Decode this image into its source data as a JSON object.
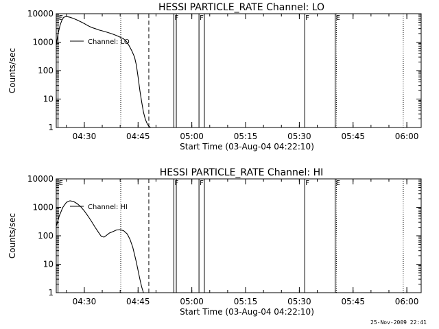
{
  "footer": {
    "timestamp": "25-Nov-2009 22:41"
  },
  "chart_data": [
    {
      "type": "line",
      "title": "HESSI PARTICLE_RATE Channel: LO",
      "xlabel": "Start Time (03-Aug-04 04:22:10)",
      "ylabel": "Counts/sec",
      "y_scale": "log",
      "ylim": [
        1,
        10000
      ],
      "xlim": [
        "04:22:10",
        "06:04:00"
      ],
      "y_ticks": [
        "1",
        "10",
        "100",
        "1000",
        "10000"
      ],
      "x_ticks": [
        "04:30",
        "04:45",
        "05:00",
        "05:15",
        "05:30",
        "05:45",
        "06:00"
      ],
      "legend": {
        "label": "Channel: LO",
        "placement": "top-left"
      },
      "series": [
        {
          "name": "Channel: LO",
          "x": [
            "04:22:10",
            "04:22:40",
            "04:23:15",
            "04:23:45",
            "04:24:15",
            "04:25:00",
            "04:26:00",
            "04:27:00",
            "04:28:00",
            "04:29:00",
            "04:30:00",
            "04:31:00",
            "04:32:00",
            "04:33:00",
            "04:34:00",
            "04:35:00",
            "04:36:00",
            "04:37:00",
            "04:38:00",
            "04:39:00",
            "04:40:00",
            "04:41:00",
            "04:41:45",
            "04:42:30",
            "04:43:15",
            "04:44:00",
            "04:44:30",
            "04:45:00",
            "04:45:30",
            "04:46:00",
            "04:46:30",
            "04:47:00",
            "04:47:30",
            "04:48:00",
            "04:48:30"
          ],
          "y": [
            800,
            2000,
            4000,
            6000,
            7500,
            8000,
            7500,
            6800,
            6000,
            5200,
            4500,
            3800,
            3300,
            3000,
            2700,
            2500,
            2300,
            2100,
            1900,
            1700,
            1500,
            1300,
            1050,
            750,
            500,
            300,
            160,
            60,
            20,
            8,
            3.5,
            2,
            1.4,
            1.1,
            1
          ]
        }
      ],
      "markers": [
        {
          "label": "E",
          "time": "04:22:40",
          "style": "solid"
        },
        {
          "label": "",
          "time": "04:40:10",
          "style": "dotted"
        },
        {
          "label": "",
          "time": "04:48:00",
          "style": "dashed"
        },
        {
          "label": "F",
          "time": "04:55:00",
          "style": "solid"
        },
        {
          "label": "",
          "time": "04:55:40",
          "style": "solid"
        },
        {
          "label": "F",
          "time": "05:02:00",
          "style": "solid"
        },
        {
          "label": "",
          "time": "05:03:30",
          "style": "solid"
        },
        {
          "label": "F",
          "time": "05:31:30",
          "style": "solid"
        },
        {
          "label": "E",
          "time": "05:40:00",
          "style": "solid"
        },
        {
          "label": "",
          "time": "05:40:20",
          "style": "dotted"
        },
        {
          "label": "",
          "time": "05:59:00",
          "style": "dotted"
        }
      ]
    },
    {
      "type": "line",
      "title": "HESSI PARTICLE_RATE Channel: HI",
      "xlabel": "Start Time (03-Aug-04 04:22:10)",
      "ylabel": "Counts/sec",
      "y_scale": "log",
      "ylim": [
        1,
        10000
      ],
      "xlim": [
        "04:22:10",
        "06:04:00"
      ],
      "y_ticks": [
        "1",
        "10",
        "100",
        "1000",
        "10000"
      ],
      "x_ticks": [
        "04:30",
        "04:45",
        "05:00",
        "05:15",
        "05:30",
        "05:45",
        "06:00"
      ],
      "legend": {
        "label": "Channel: HI",
        "placement": "top-left"
      },
      "series": [
        {
          "name": "Channel: HI",
          "x": [
            "04:22:10",
            "04:23:00",
            "04:24:00",
            "04:25:00",
            "04:26:00",
            "04:27:00",
            "04:28:00",
            "04:29:00",
            "04:30:00",
            "04:31:00",
            "04:32:00",
            "04:33:00",
            "04:34:00",
            "04:34:45",
            "04:35:30",
            "04:36:15",
            "04:37:00",
            "04:38:00",
            "04:39:00",
            "04:40:00",
            "04:41:00",
            "04:42:00",
            "04:42:45",
            "04:43:30",
            "04:44:00",
            "04:44:30",
            "04:45:00",
            "04:45:30",
            "04:46:00",
            "04:46:30"
          ],
          "y": [
            220,
            500,
            1000,
            1500,
            1700,
            1600,
            1350,
            1050,
            750,
            500,
            320,
            200,
            130,
            95,
            90,
            105,
            125,
            140,
            160,
            165,
            150,
            115,
            75,
            40,
            22,
            12,
            6,
            3,
            1.6,
            1
          ]
        }
      ],
      "markers": [
        {
          "label": "E",
          "time": "04:22:40",
          "style": "solid"
        },
        {
          "label": "",
          "time": "04:40:10",
          "style": "dotted"
        },
        {
          "label": "",
          "time": "04:48:00",
          "style": "dashed"
        },
        {
          "label": "F",
          "time": "04:55:00",
          "style": "solid"
        },
        {
          "label": "",
          "time": "04:55:40",
          "style": "solid"
        },
        {
          "label": "F",
          "time": "05:02:00",
          "style": "solid"
        },
        {
          "label": "",
          "time": "05:03:30",
          "style": "solid"
        },
        {
          "label": "F",
          "time": "05:31:30",
          "style": "solid"
        },
        {
          "label": "E",
          "time": "05:40:00",
          "style": "solid"
        },
        {
          "label": "",
          "time": "05:40:20",
          "style": "dotted"
        },
        {
          "label": "",
          "time": "05:59:00",
          "style": "dotted"
        }
      ]
    }
  ]
}
